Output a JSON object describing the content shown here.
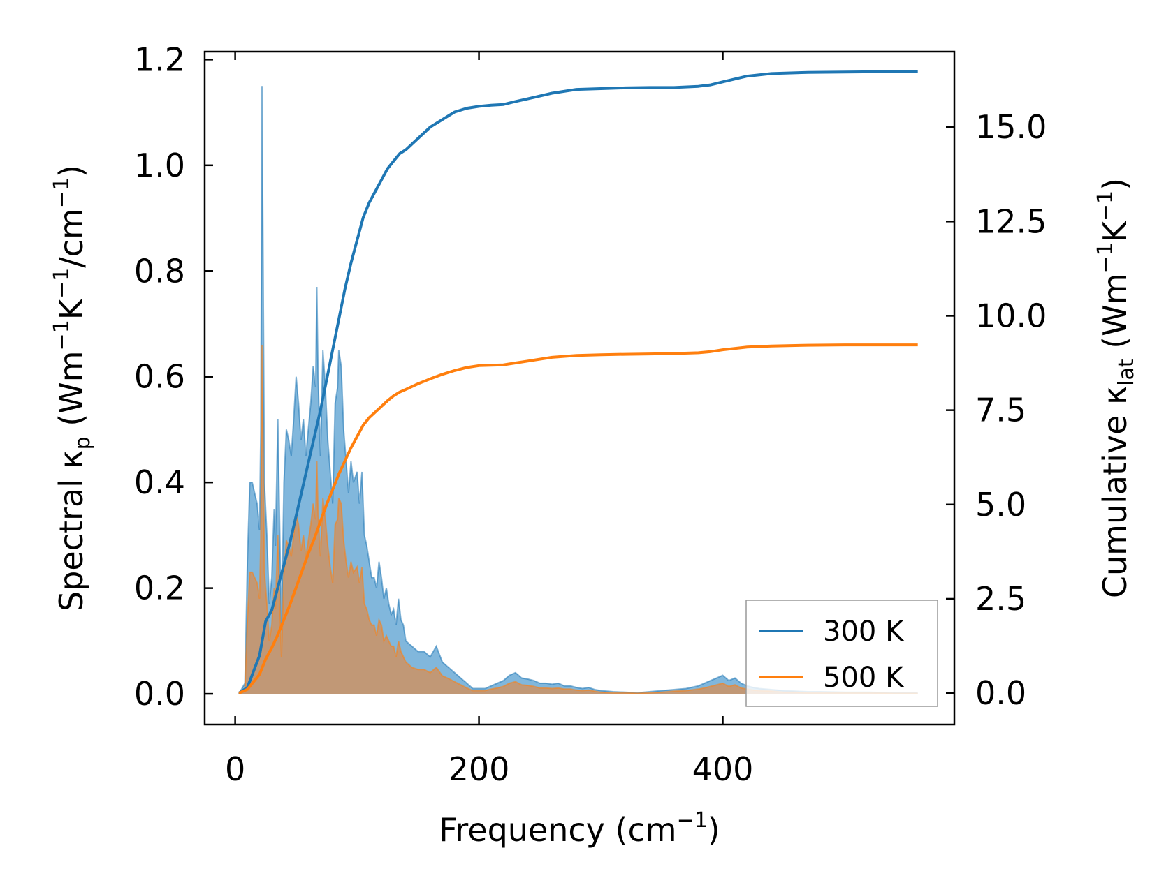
{
  "chart_data": {
    "type": "area",
    "xlabel": "Frequency (cm−1)",
    "ylabel_left": "Spectral κₚ (Wm−1K−1/cm−1)",
    "ylabel_right": "Cumulative κₗₐₜ (Wm−1K−1)",
    "xlabel_parts": {
      "pre": "Frequency (cm",
      "sup": "−1",
      "post": ")"
    },
    "ylabel_left_parts": {
      "a": "Spectral κ",
      "sub": "p",
      "b": " (Wm",
      "s1": "−1",
      "c": "K",
      "s2": "−1",
      "d": "/cm",
      "s3": "−1",
      "e": ")"
    },
    "ylabel_right_parts": {
      "a": "Cumulative κ",
      "sub": "lat",
      "b": " (Wm",
      "s1": "−1",
      "c": "K",
      "s2": "−1",
      "e": ")"
    },
    "xlim": [
      -25,
      590
    ],
    "ylim_left": [
      -0.058,
      1.215
    ],
    "ylim_right": [
      -0.83,
      17.0
    ],
    "xticks": [
      "0",
      "200",
      "400"
    ],
    "yticks_left": [
      "0.0",
      "0.2",
      "0.4",
      "0.6",
      "0.8",
      "1.0",
      "1.2"
    ],
    "yticks_right": [
      "0.0",
      "2.5",
      "5.0",
      "7.5",
      "10.0",
      "12.5",
      "15.0"
    ],
    "legend_position": "lower right",
    "grid": false,
    "series": [
      {
        "name": "300 K",
        "color": "#1f77b4",
        "fill_color": "#6baad6",
        "spectral": {
          "x": [
            3,
            8,
            10,
            12,
            14,
            16,
            18,
            20,
            21,
            22,
            23,
            24,
            26,
            28,
            30,
            32,
            33,
            35,
            37,
            38,
            40,
            42,
            44,
            46,
            48,
            50,
            52,
            54,
            56,
            58,
            60,
            62,
            64,
            66,
            67,
            68,
            70,
            72,
            74,
            76,
            78,
            80,
            82,
            84,
            85,
            87,
            89,
            91,
            93,
            95,
            97,
            100,
            102,
            104,
            106,
            108,
            110,
            112,
            114,
            116,
            118,
            120,
            122,
            124,
            126,
            128,
            130,
            132,
            134,
            136,
            138,
            140,
            145,
            150,
            155,
            160,
            165,
            170,
            175,
            180,
            185,
            190,
            195,
            200,
            205,
            210,
            215,
            220,
            225,
            230,
            235,
            240,
            245,
            250,
            255,
            260,
            265,
            270,
            275,
            280,
            285,
            290,
            295,
            300,
            310,
            320,
            330,
            340,
            350,
            360,
            370,
            380,
            385,
            390,
            395,
            400,
            405,
            410,
            415,
            420,
            425,
            430,
            440,
            450,
            460,
            470,
            480,
            500,
            520,
            540,
            560
          ],
          "y": [
            0.0,
            0.02,
            0.25,
            0.4,
            0.4,
            0.38,
            0.36,
            0.31,
            0.5,
            1.15,
            0.8,
            0.4,
            0.3,
            0.17,
            0.22,
            0.35,
            0.28,
            0.52,
            0.25,
            0.12,
            0.4,
            0.5,
            0.48,
            0.45,
            0.52,
            0.6,
            0.55,
            0.48,
            0.52,
            0.45,
            0.5,
            0.55,
            0.62,
            0.58,
            0.77,
            0.6,
            0.45,
            0.65,
            0.58,
            0.48,
            0.42,
            0.36,
            0.55,
            0.58,
            0.65,
            0.62,
            0.5,
            0.44,
            0.38,
            0.44,
            0.4,
            0.42,
            0.36,
            0.42,
            0.3,
            0.28,
            0.25,
            0.22,
            0.22,
            0.2,
            0.25,
            0.22,
            0.18,
            0.2,
            0.17,
            0.15,
            0.16,
            0.13,
            0.18,
            0.14,
            0.13,
            0.1,
            0.09,
            0.08,
            0.08,
            0.07,
            0.09,
            0.06,
            0.05,
            0.04,
            0.03,
            0.02,
            0.01,
            0.01,
            0.01,
            0.015,
            0.02,
            0.025,
            0.035,
            0.04,
            0.03,
            0.028,
            0.025,
            0.02,
            0.02,
            0.018,
            0.02,
            0.015,
            0.015,
            0.012,
            0.01,
            0.012,
            0.008,
            0.006,
            0.004,
            0.003,
            0.002,
            0.004,
            0.006,
            0.008,
            0.01,
            0.015,
            0.02,
            0.025,
            0.03,
            0.035,
            0.025,
            0.03,
            0.02,
            0.015,
            0.012,
            0.01,
            0.008,
            0.006,
            0.005,
            0.004,
            0.004,
            0.003,
            0.003,
            0.002,
            0.002
          ]
        },
        "cumulative": {
          "x": [
            3,
            10,
            20,
            25,
            30,
            35,
            40,
            45,
            50,
            55,
            60,
            65,
            70,
            75,
            80,
            85,
            90,
            95,
            100,
            105,
            110,
            115,
            120,
            125,
            130,
            135,
            140,
            150,
            160,
            170,
            180,
            190,
            200,
            210,
            220,
            230,
            240,
            260,
            280,
            300,
            320,
            340,
            360,
            380,
            390,
            400,
            420,
            440,
            470,
            500,
            530,
            560
          ],
          "y": [
            0.0,
            0.15,
            1.0,
            1.9,
            2.2,
            2.8,
            3.4,
            4.0,
            4.7,
            5.4,
            6.1,
            6.8,
            7.5,
            8.3,
            9.1,
            9.9,
            10.7,
            11.4,
            12.0,
            12.6,
            13.0,
            13.3,
            13.6,
            13.9,
            14.1,
            14.3,
            14.4,
            14.7,
            15.0,
            15.2,
            15.4,
            15.5,
            15.55,
            15.58,
            15.6,
            15.68,
            15.75,
            15.9,
            16.0,
            16.02,
            16.04,
            16.05,
            16.05,
            16.08,
            16.12,
            16.2,
            16.35,
            16.42,
            16.45,
            16.46,
            16.47,
            16.47
          ]
        }
      },
      {
        "name": "500 K",
        "color": "#ff7f0e",
        "fill_color": "#c8956a",
        "spectral": {
          "x": [
            3,
            8,
            10,
            12,
            14,
            16,
            18,
            20,
            21,
            22,
            23,
            24,
            26,
            28,
            30,
            32,
            33,
            35,
            37,
            38,
            40,
            42,
            44,
            46,
            48,
            50,
            52,
            54,
            56,
            58,
            60,
            62,
            64,
            66,
            67,
            68,
            70,
            72,
            74,
            76,
            78,
            80,
            82,
            84,
            85,
            87,
            89,
            91,
            93,
            95,
            97,
            100,
            102,
            104,
            106,
            108,
            110,
            112,
            114,
            116,
            118,
            120,
            122,
            124,
            126,
            128,
            130,
            132,
            134,
            136,
            138,
            140,
            145,
            150,
            155,
            160,
            165,
            170,
            175,
            180,
            185,
            190,
            195,
            200,
            205,
            210,
            215,
            220,
            225,
            230,
            235,
            240,
            245,
            250,
            255,
            260,
            265,
            270,
            275,
            280,
            285,
            290,
            295,
            300,
            310,
            320,
            330,
            340,
            350,
            360,
            370,
            380,
            385,
            390,
            395,
            400,
            405,
            410,
            415,
            420,
            425,
            430,
            440,
            450,
            460,
            470,
            480,
            500,
            520,
            540,
            560
          ],
          "y": [
            0.0,
            0.01,
            0.14,
            0.23,
            0.23,
            0.22,
            0.21,
            0.18,
            0.29,
            0.66,
            0.46,
            0.23,
            0.17,
            0.1,
            0.13,
            0.2,
            0.16,
            0.3,
            0.14,
            0.07,
            0.23,
            0.29,
            0.28,
            0.26,
            0.3,
            0.34,
            0.32,
            0.27,
            0.3,
            0.26,
            0.29,
            0.32,
            0.36,
            0.33,
            0.44,
            0.34,
            0.26,
            0.37,
            0.33,
            0.28,
            0.24,
            0.21,
            0.32,
            0.33,
            0.37,
            0.36,
            0.29,
            0.25,
            0.22,
            0.25,
            0.23,
            0.24,
            0.21,
            0.24,
            0.17,
            0.16,
            0.14,
            0.13,
            0.13,
            0.11,
            0.14,
            0.13,
            0.1,
            0.11,
            0.1,
            0.09,
            0.09,
            0.07,
            0.1,
            0.08,
            0.07,
            0.06,
            0.05,
            0.046,
            0.046,
            0.04,
            0.05,
            0.034,
            0.029,
            0.023,
            0.017,
            0.011,
            0.006,
            0.006,
            0.006,
            0.009,
            0.011,
            0.014,
            0.02,
            0.023,
            0.017,
            0.016,
            0.014,
            0.011,
            0.011,
            0.01,
            0.011,
            0.009,
            0.009,
            0.007,
            0.006,
            0.007,
            0.005,
            0.003,
            0.002,
            0.002,
            0.001,
            0.002,
            0.003,
            0.005,
            0.006,
            0.009,
            0.011,
            0.014,
            0.017,
            0.02,
            0.014,
            0.017,
            0.011,
            0.009,
            0.007,
            0.006,
            0.005,
            0.003,
            0.003,
            0.002,
            0.002,
            0.002,
            0.002,
            0.001,
            0.001
          ]
        },
        "cumulative": {
          "x": [
            3,
            10,
            20,
            25,
            30,
            35,
            40,
            45,
            50,
            55,
            60,
            65,
            70,
            75,
            80,
            85,
            90,
            95,
            100,
            105,
            110,
            115,
            120,
            125,
            130,
            135,
            140,
            150,
            160,
            170,
            180,
            190,
            200,
            210,
            220,
            230,
            240,
            260,
            280,
            300,
            320,
            340,
            360,
            380,
            390,
            400,
            420,
            440,
            470,
            500,
            530,
            560
          ],
          "y": [
            0.0,
            0.1,
            0.5,
            0.9,
            1.2,
            1.55,
            1.95,
            2.35,
            2.8,
            3.25,
            3.7,
            4.1,
            4.55,
            5.0,
            5.4,
            5.8,
            6.15,
            6.5,
            6.8,
            7.1,
            7.3,
            7.45,
            7.6,
            7.75,
            7.88,
            7.98,
            8.05,
            8.2,
            8.33,
            8.45,
            8.55,
            8.63,
            8.68,
            8.69,
            8.7,
            8.75,
            8.8,
            8.9,
            8.95,
            8.97,
            8.98,
            8.99,
            9.0,
            9.02,
            9.05,
            9.1,
            9.17,
            9.2,
            9.22,
            9.23,
            9.23,
            9.23
          ]
        }
      }
    ]
  }
}
